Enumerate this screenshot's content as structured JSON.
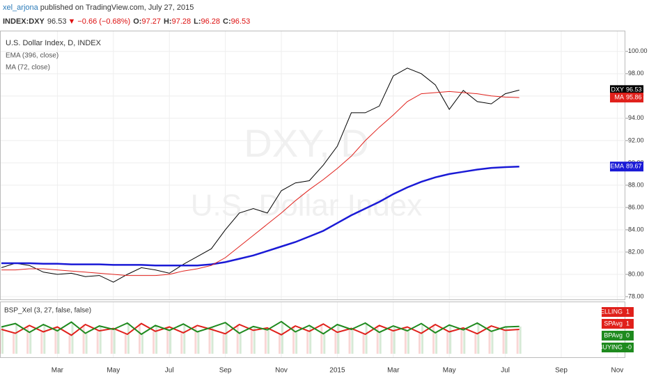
{
  "header": {
    "author": "xel_arjona",
    "published": "published on TradingView.com, July 27, 2015",
    "symbol": "INDEX:DXY",
    "last": 96.53,
    "change": "▼ −0.66 (−0.68%)",
    "ohlc": [
      {
        "label": "O:",
        "value": 97.27
      },
      {
        "label": "H:",
        "value": 97.28
      },
      {
        "label": "L:",
        "value": 96.28
      },
      {
        "label": "C:",
        "value": 96.53
      }
    ]
  },
  "chart_data": {
    "type": "line",
    "title": "U.S. Dollar Index, D, INDEX",
    "watermark": [
      "DXY, D",
      "U.S. Dollar Index"
    ],
    "categories": [
      null,
      null,
      null,
      null,
      "Mar",
      null,
      null,
      null,
      "May",
      null,
      null,
      null,
      "Jul",
      null,
      null,
      null,
      "Sep",
      null,
      null,
      null,
      "Nov",
      null,
      null,
      null,
      "2015",
      null,
      null,
      null,
      "Mar",
      null,
      null,
      null,
      "May",
      null,
      null,
      null,
      "Jul",
      null,
      null,
      null,
      "Sep",
      null,
      null,
      null,
      "Nov"
    ],
    "series": [
      {
        "name": "DXY",
        "tag": "DXY",
        "color": "#000000",
        "values": [
          80.6,
          81.0,
          80.8,
          80.2,
          80.0,
          80.1,
          79.8,
          79.9,
          79.3,
          80.0,
          80.6,
          80.4,
          80.1,
          80.9,
          81.6,
          82.3,
          84.0,
          85.5,
          85.9,
          85.5,
          87.5,
          88.2,
          88.4,
          89.8,
          91.5,
          94.5,
          94.5,
          95.1,
          97.8,
          98.5,
          98.0,
          97.0,
          94.8,
          96.5,
          95.5,
          95.3,
          96.2,
          96.53,
          null,
          null,
          null,
          null,
          null,
          null,
          null
        ]
      },
      {
        "name": "EMA (396, close)",
        "tag": "EMA",
        "color": "#1a1ad6",
        "values": [
          81.0,
          81.0,
          81.0,
          80.95,
          80.95,
          80.9,
          80.9,
          80.9,
          80.85,
          80.85,
          80.85,
          80.8,
          80.8,
          80.8,
          80.8,
          80.9,
          81.1,
          81.4,
          81.7,
          82.1,
          82.5,
          82.9,
          83.4,
          83.9,
          84.6,
          85.3,
          85.9,
          86.5,
          87.2,
          87.8,
          88.3,
          88.7,
          89.0,
          89.2,
          89.4,
          89.55,
          89.62,
          89.67,
          null,
          null,
          null,
          null,
          null,
          null,
          null
        ]
      },
      {
        "name": "MA (72, close)",
        "tag": "MA",
        "color": "#e0201b",
        "values": [
          80.4,
          80.4,
          80.5,
          80.5,
          80.4,
          80.3,
          80.2,
          80.1,
          80.0,
          79.9,
          79.9,
          79.9,
          80.0,
          80.3,
          80.5,
          80.8,
          81.5,
          82.5,
          83.5,
          84.5,
          85.5,
          86.6,
          87.6,
          88.5,
          89.5,
          90.6,
          92.0,
          93.2,
          94.3,
          95.5,
          96.2,
          96.3,
          96.4,
          96.3,
          96.2,
          96.0,
          95.9,
          95.86,
          null,
          null,
          null,
          null,
          null,
          null,
          null
        ]
      }
    ],
    "ylim": [
      77.75,
      101.8
    ],
    "yticks": [
      {
        "value": 78,
        "label": "78.00"
      },
      {
        "value": 80,
        "label": "80.00"
      },
      {
        "value": 82,
        "label": "82.00"
      },
      {
        "value": 84,
        "label": "84.00"
      },
      {
        "value": 86,
        "label": "86.00"
      },
      {
        "value": 88,
        "label": "88.00"
      },
      {
        "value": 90,
        "label": "90.00"
      },
      {
        "value": 92,
        "label": "92.00"
      },
      {
        "value": 94,
        "label": "94.00"
      },
      {
        "value": 96,
        "label": "96.00"
      },
      {
        "value": 98,
        "label": "98.00"
      },
      {
        "value": 100,
        "label": "100.00"
      }
    ],
    "grid": true,
    "lower": {
      "title": "BSP_Xel (3, 27, false, false)",
      "ylim": [
        0,
        1
      ],
      "lines": [
        {
          "color": "#e0201b",
          "values": [
            0.5,
            0.42,
            0.58,
            0.45,
            0.55,
            0.38,
            0.6,
            0.47,
            0.52,
            0.4,
            0.62,
            0.46,
            0.55,
            0.43,
            0.58,
            0.5,
            0.41,
            0.6,
            0.48,
            0.53,
            0.39,
            0.57,
            0.46,
            0.61,
            0.44,
            0.52,
            0.4,
            0.58,
            0.47,
            0.55,
            0.42,
            0.6,
            0.45,
            0.53,
            0.41,
            0.57,
            0.48,
            0.5,
            null,
            null,
            null,
            null,
            null,
            null,
            null
          ]
        },
        {
          "color": "#1e8a1e",
          "values": [
            0.55,
            0.62,
            0.44,
            0.6,
            0.47,
            0.65,
            0.42,
            0.57,
            0.5,
            0.63,
            0.4,
            0.58,
            0.48,
            0.61,
            0.45,
            0.54,
            0.64,
            0.42,
            0.56,
            0.49,
            0.66,
            0.45,
            0.58,
            0.41,
            0.6,
            0.5,
            0.63,
            0.44,
            0.57,
            0.47,
            0.62,
            0.43,
            0.59,
            0.49,
            0.63,
            0.46,
            0.55,
            0.56,
            null,
            null,
            null,
            null,
            null,
            null,
            null
          ]
        }
      ],
      "readouts": [
        {
          "name": "SELLING",
          "color": "#e0201b",
          "values": [
            1
          ],
          "value_labels": [
            "1"
          ]
        },
        {
          "name": "SPAvg",
          "color": "#e0201b",
          "values": [
            1
          ],
          "value_labels": [
            "1"
          ]
        },
        {
          "name": "BPAvg",
          "color": "#1e8a1e",
          "values": [
            0
          ],
          "value_labels": [
            "0"
          ]
        },
        {
          "name": "BUYING",
          "color": "#1e8a1e",
          "values": [
            0
          ],
          "value_labels": [
            "-0"
          ]
        }
      ]
    }
  }
}
